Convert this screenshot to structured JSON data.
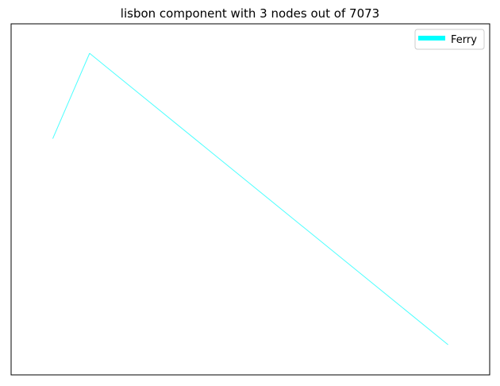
{
  "chart_data": {
    "type": "line",
    "title": "lisbon component with 3 nodes out of 7073",
    "xlabel": "",
    "ylabel": "",
    "xlim": [
      0,
      100
    ],
    "ylim": [
      0,
      100
    ],
    "grid": false,
    "axis_ticks": false,
    "legend_position": "top-right",
    "series": [
      {
        "name": "Ferry",
        "color": "#00ffff",
        "points": [
          {
            "x": 8.7,
            "y": 67.3
          },
          {
            "x": 16.4,
            "y": 91.6
          },
          {
            "x": 91.3,
            "y": 8.6
          }
        ]
      }
    ]
  }
}
